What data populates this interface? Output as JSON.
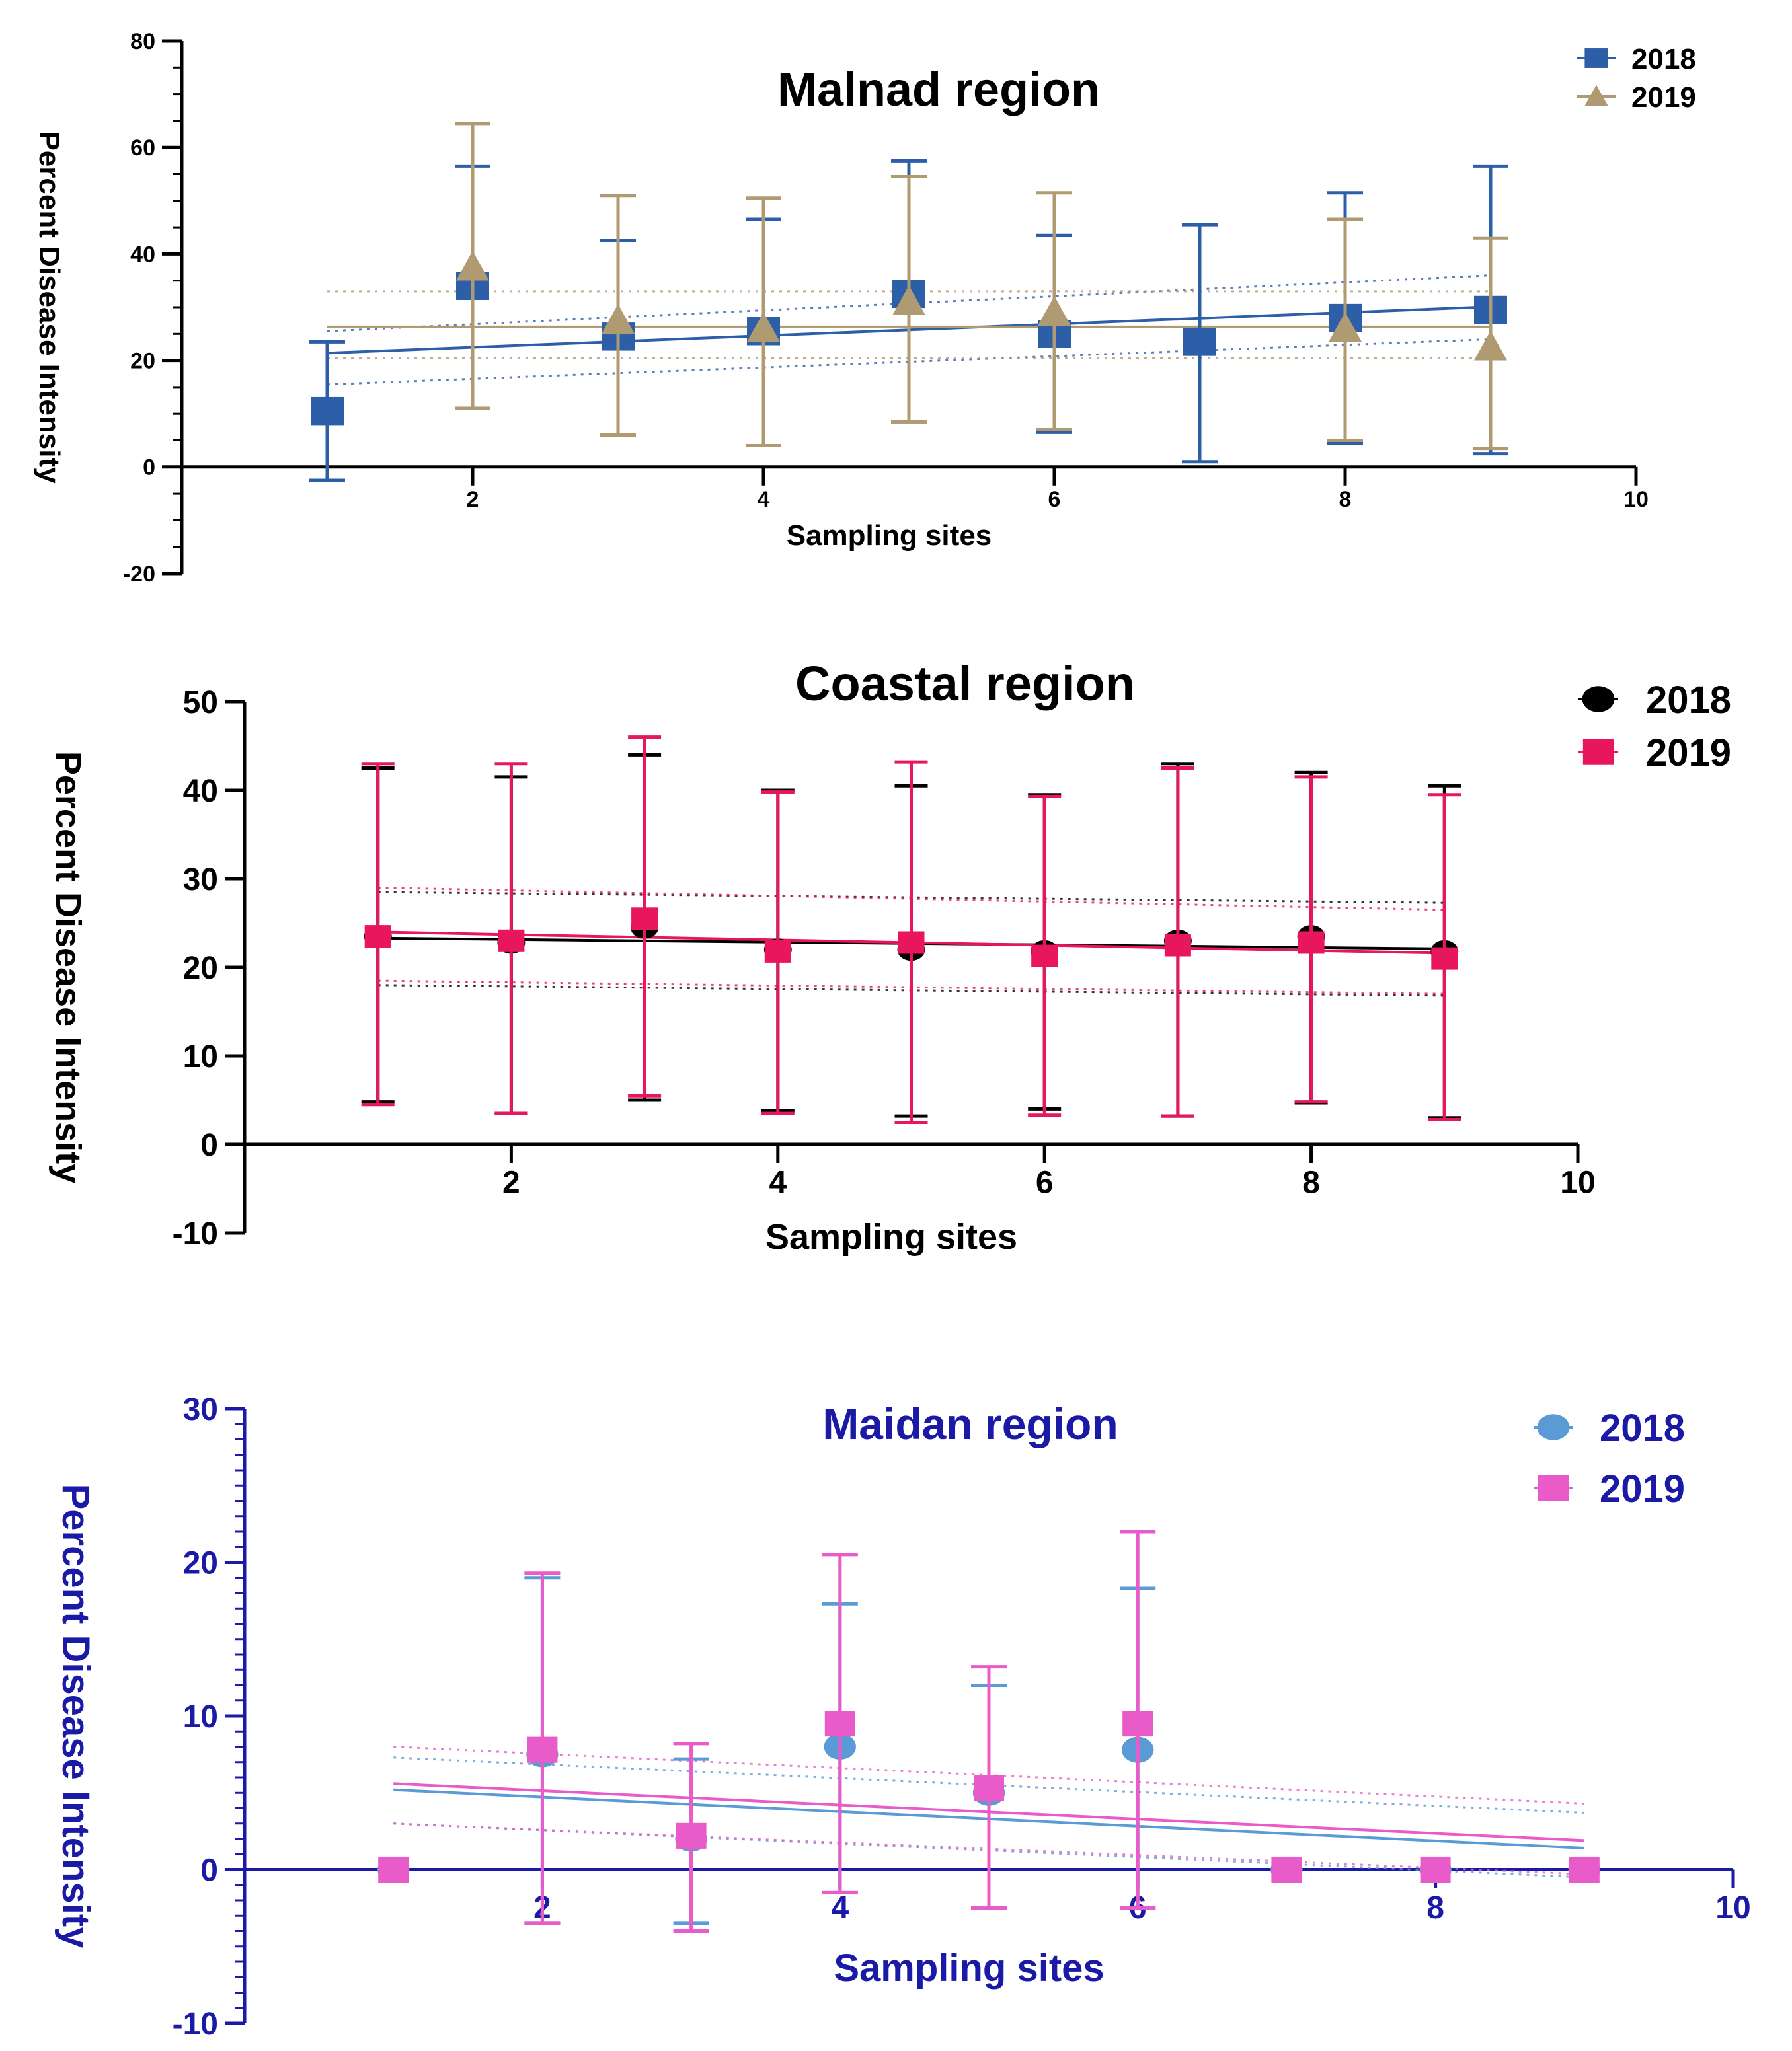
{
  "chart_data": [
    {
      "type": "scatter",
      "title": "Malnad region",
      "xlabel": "Sampling sites",
      "ylabel": "Percent Disease Intensity",
      "xlim": [
        0,
        10
      ],
      "ylim": [
        -20,
        80
      ],
      "xticks": [
        2,
        4,
        6,
        8,
        10
      ],
      "yticks": [
        -20,
        0,
        20,
        40,
        60,
        80
      ],
      "xtick_labels": [
        "2",
        "4",
        "6",
        "8",
        "10"
      ],
      "ytick_labels": [
        "-20",
        "0",
        "20",
        "40",
        "60",
        "80"
      ],
      "legend_position": "top-right",
      "series": [
        {
          "name": "2018",
          "legend": "2018",
          "marker": "square",
          "color": "#2d5fa8",
          "x": [
            1,
            2,
            3,
            4,
            5,
            6,
            7,
            8,
            9
          ],
          "y": [
            10.5,
            34,
            24.5,
            25.5,
            32.5,
            25,
            23.5,
            28,
            29.5
          ],
          "err_low": [
            -2.5,
            11,
            6,
            4,
            8.5,
            6.5,
            1,
            4.5,
            2.5
          ],
          "err_high": [
            23.5,
            56.5,
            42.5,
            46.5,
            57.5,
            43.5,
            45.5,
            51.5,
            56.5
          ],
          "fit": [
            21.4,
            30.1
          ],
          "band_upper": [
            25.5,
            36
          ],
          "band_lower": [
            15.5,
            24
          ]
        },
        {
          "name": "2019",
          "legend": "2019",
          "marker": "triangle",
          "color": "#b09a72",
          "x": [
            2,
            3,
            4,
            5,
            6,
            8,
            9
          ],
          "y": [
            37.5,
            27.5,
            26,
            31,
            29,
            26,
            22.5
          ],
          "err_low": [
            11,
            6,
            4,
            8.5,
            7,
            5,
            3.5
          ],
          "err_high": [
            64.5,
            51,
            50.5,
            54.5,
            51.5,
            46.5,
            43
          ],
          "fit": [
            26.3,
            26.3
          ],
          "band_upper": [
            33,
            33
          ],
          "band_lower": [
            20.5,
            20.5
          ]
        }
      ]
    },
    {
      "type": "scatter",
      "title": "Coastal region",
      "xlabel": "Sampling sites",
      "ylabel": "Percent Disease Intensity",
      "xlim": [
        0,
        10
      ],
      "ylim": [
        -10,
        50
      ],
      "xticks": [
        2,
        4,
        6,
        8,
        10
      ],
      "yticks": [
        -10,
        0,
        10,
        20,
        30,
        40,
        50
      ],
      "xtick_labels": [
        "2",
        "4",
        "6",
        "8",
        "10"
      ],
      "ytick_labels": [
        "-10",
        "0",
        "10",
        "20",
        "30",
        "40",
        "50"
      ],
      "legend_position": "top-right",
      "series": [
        {
          "name": "2018",
          "legend": "2018",
          "marker": "circle",
          "color": "#000000",
          "x": [
            1,
            2,
            3,
            4,
            5,
            6,
            7,
            8,
            9
          ],
          "y": [
            23.5,
            22.8,
            24.5,
            22,
            22,
            21.8,
            23,
            23.5,
            21.8
          ],
          "err_low": [
            4.8,
            3.5,
            5,
            3.8,
            3.2,
            4,
            3.2,
            4.7,
            3
          ],
          "err_high": [
            42.5,
            41.5,
            44,
            40,
            40.5,
            39.5,
            43,
            42,
            40.5
          ],
          "fit": [
            23.3,
            22.1
          ],
          "band_upper": [
            28.5,
            27.3
          ],
          "band_lower": [
            18,
            16.8
          ]
        },
        {
          "name": "2019",
          "legend": "2019",
          "marker": "square",
          "color": "#e8175d",
          "x": [
            1,
            2,
            3,
            4,
            5,
            6,
            7,
            8,
            9
          ],
          "y": [
            23.5,
            23,
            25.5,
            21.8,
            22.8,
            21.3,
            22.5,
            22.8,
            21
          ],
          "err_low": [
            4.5,
            3.5,
            5.5,
            3.5,
            2.5,
            3.3,
            3.2,
            4.8,
            2.8
          ],
          "err_high": [
            43,
            43,
            46,
            39.8,
            43.2,
            39.3,
            42.5,
            41.5,
            39.5
          ],
          "fit": [
            24,
            21.6
          ],
          "band_upper": [
            29,
            26.5
          ],
          "band_lower": [
            18.5,
            17
          ]
        }
      ]
    },
    {
      "type": "scatter",
      "title": "Maidan region",
      "xlabel": "Sampling sites",
      "ylabel": "Percent Disease Intensity",
      "xlim": [
        0,
        10
      ],
      "ylim": [
        -10,
        30
      ],
      "xticks": [
        2,
        4,
        6,
        8,
        10
      ],
      "yticks": [
        -10,
        0,
        10,
        20,
        30
      ],
      "xtick_labels": [
        "2",
        "4",
        "6",
        "8",
        "10"
      ],
      "ytick_labels": [
        "-10",
        "0",
        "10",
        "20",
        "30"
      ],
      "legend_position": "top-right",
      "series": [
        {
          "name": "2018",
          "legend": "2018",
          "marker": "circle",
          "color": "#5b9bd5",
          "x": [
            1,
            2,
            3,
            4,
            5,
            6,
            7,
            8,
            9
          ],
          "y": [
            0,
            7.5,
            2,
            8,
            5,
            7.8,
            0,
            0,
            0
          ],
          "err_low": [
            0,
            -3.5,
            -3.5,
            -1.5,
            -2.5,
            -2.5,
            0,
            0,
            0
          ],
          "err_high": [
            0,
            19,
            7.2,
            17.3,
            12,
            18.3,
            0,
            0,
            0
          ],
          "fit": [
            5.2,
            1.4
          ],
          "band_upper": [
            7.3,
            3.7
          ],
          "band_lower": [
            3,
            -0.5
          ]
        },
        {
          "name": "2019",
          "legend": "2019",
          "marker": "square",
          "color": "#e85bc8",
          "x": [
            1,
            2,
            3,
            4,
            5,
            6,
            7,
            8,
            9
          ],
          "y": [
            0,
            7.8,
            2.2,
            9.5,
            5.3,
            9.5,
            0,
            0,
            0
          ],
          "err_low": [
            0,
            -3.5,
            -4,
            -1.5,
            -2.5,
            -2.5,
            0,
            0,
            0
          ],
          "err_high": [
            0,
            19.3,
            8.2,
            20.5,
            13.2,
            22,
            0,
            0,
            0
          ],
          "fit": [
            5.6,
            1.9
          ],
          "band_upper": [
            8,
            4.3
          ],
          "band_lower": [
            3,
            -0.3
          ]
        }
      ]
    }
  ]
}
